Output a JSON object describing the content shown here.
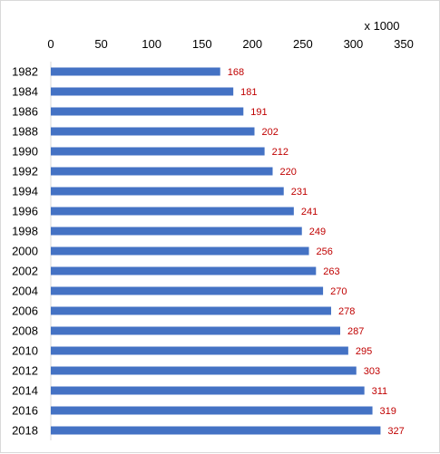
{
  "chart_data": {
    "type": "bar",
    "orientation": "horizontal",
    "unit_label": "x 1000",
    "categories": [
      "1982",
      "1984",
      "1986",
      "1988",
      "1990",
      "1992",
      "1994",
      "1996",
      "1998",
      "2000",
      "2002",
      "2004",
      "2006",
      "2008",
      "2010",
      "2012",
      "2014",
      "2016",
      "2018"
    ],
    "values": [
      168,
      181,
      191,
      202,
      212,
      220,
      231,
      241,
      249,
      256,
      263,
      270,
      278,
      287,
      295,
      303,
      311,
      319,
      327
    ],
    "xlim": [
      0,
      350
    ],
    "xticks": [
      0,
      50,
      100,
      150,
      200,
      250,
      300,
      350
    ],
    "x_axis_position": "top",
    "grid": false,
    "legend": "none",
    "bar_color": "#4472c4",
    "label_color": "#c00000"
  }
}
